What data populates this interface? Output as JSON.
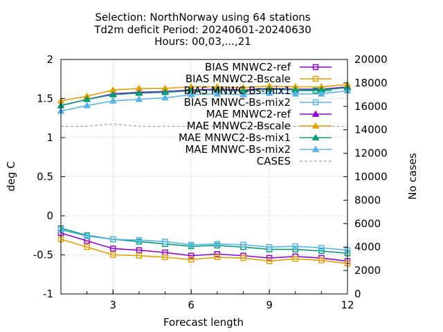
{
  "chart_data": {
    "type": "line",
    "title_lines": [
      "Selection: NorthNorway using    64 stations",
      "Td2m deficit   Period: 20240601-20240630",
      "Hours: 00,03,...,21"
    ],
    "xlabel": "Forecast length",
    "ylabel": "deg C",
    "y2label": "No cases",
    "xlim": [
      1,
      12
    ],
    "ylim": [
      -1,
      2
    ],
    "y2lim": [
      0,
      20000
    ],
    "xticks": [
      3,
      6,
      9,
      12
    ],
    "yticks": [
      -1,
      -0.5,
      0,
      0.5,
      1,
      1.5,
      2
    ],
    "ytick_labels": [
      "-1",
      "-0.5",
      "0",
      "0.5",
      "1",
      "1.5",
      "2"
    ],
    "y2ticks": [
      0,
      2000,
      4000,
      6000,
      8000,
      10000,
      12000,
      14000,
      16000,
      18000,
      20000
    ],
    "grid": true,
    "legend_position": "top-right",
    "x": [
      1,
      2,
      3,
      4,
      5,
      6,
      7,
      8,
      9,
      10,
      11,
      12
    ],
    "series": [
      {
        "name": "BIAS MNWC2-ref",
        "color": "#9400d3",
        "marker": "open-square",
        "axis": "y1",
        "values": [
          -0.22,
          -0.32,
          -0.42,
          -0.44,
          -0.47,
          -0.51,
          -0.49,
          -0.51,
          -0.54,
          -0.52,
          -0.54,
          -0.58
        ]
      },
      {
        "name": "BIAS MNWC2-Bscale",
        "color": "#e69f00",
        "marker": "open-square",
        "axis": "y1",
        "values": [
          -0.3,
          -0.4,
          -0.5,
          -0.51,
          -0.53,
          -0.56,
          -0.53,
          -0.54,
          -0.58,
          -0.55,
          -0.57,
          -0.61
        ]
      },
      {
        "name": "BIAS MNWC-Bs-mix1",
        "color": "#009e73",
        "marker": "open-square",
        "axis": "y1",
        "values": [
          -0.16,
          -0.25,
          -0.3,
          -0.33,
          -0.36,
          -0.39,
          -0.38,
          -0.4,
          -0.43,
          -0.43,
          -0.45,
          -0.48
        ]
      },
      {
        "name": "BIAS MNWC-Bs-mix2",
        "color": "#56b4e9",
        "marker": "open-square",
        "axis": "y1",
        "values": [
          -0.18,
          -0.26,
          -0.3,
          -0.31,
          -0.33,
          -0.37,
          -0.36,
          -0.37,
          -0.4,
          -0.39,
          -0.41,
          -0.44
        ]
      },
      {
        "name": "MAE MNWC2-ref",
        "color": "#9400d3",
        "marker": "filled-triangle",
        "axis": "y1",
        "values": [
          1.41,
          1.49,
          1.56,
          1.58,
          1.59,
          1.61,
          1.62,
          1.61,
          1.63,
          1.62,
          1.62,
          1.65
        ]
      },
      {
        "name": "MAE MNWC2-Bscale",
        "color": "#e69f00",
        "marker": "filled-triangle",
        "axis": "y1",
        "values": [
          1.47,
          1.53,
          1.61,
          1.63,
          1.63,
          1.65,
          1.65,
          1.64,
          1.66,
          1.65,
          1.65,
          1.68
        ]
      },
      {
        "name": "MAE MNWC2-Bs-mix1",
        "color": "#009e73",
        "marker": "filled-triangle",
        "axis": "y1",
        "values": [
          1.41,
          1.49,
          1.55,
          1.57,
          1.58,
          1.6,
          1.61,
          1.6,
          1.62,
          1.61,
          1.61,
          1.64
        ]
      },
      {
        "name": "MAE MNWC-Bs-mix2",
        "color": "#56b4e9",
        "marker": "filled-triangle",
        "axis": "y1",
        "values": [
          1.34,
          1.41,
          1.47,
          1.49,
          1.51,
          1.55,
          1.56,
          1.55,
          1.57,
          1.56,
          1.56,
          1.6
        ]
      },
      {
        "name": "CASES",
        "color": "#a0a0a0",
        "marker": "none",
        "dashed": true,
        "axis": "y2",
        "values": [
          14300,
          14300,
          14500,
          14300,
          14300,
          14300,
          14300,
          14300,
          14300,
          14300,
          14300,
          14300
        ]
      }
    ]
  }
}
